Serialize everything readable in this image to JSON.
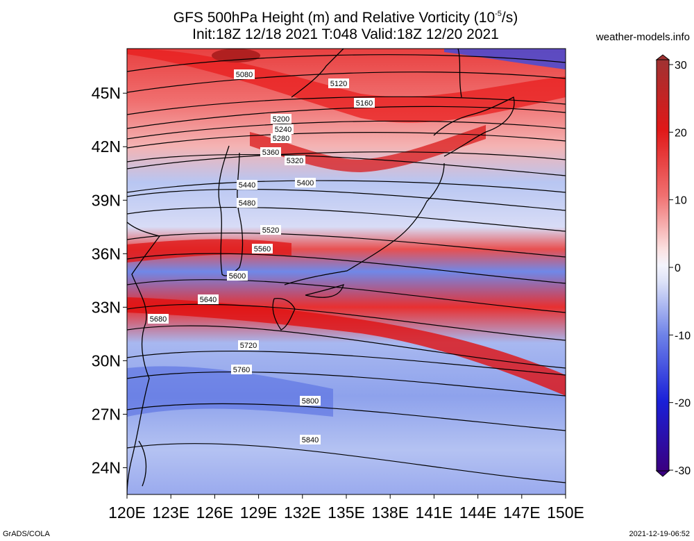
{
  "title": {
    "line1_prefix": "GFS 500hPa Height (m) and Relative Vorticity (10",
    "line1_exp": "-5",
    "line1_suffix": "/s)",
    "line2": "Init:18Z 12/18 2021 T:048 Valid:18Z 12/20 2021"
  },
  "credit": "weather-models.info",
  "footer_left": "GrADS/COLA",
  "footer_right": "2021-12-19-06:52",
  "map": {
    "lon_ticks": [
      "120E",
      "123E",
      "126E",
      "129E",
      "132E",
      "135E",
      "138E",
      "141E",
      "144E",
      "147E",
      "150E"
    ],
    "lat_ticks": [
      "45N",
      "42N",
      "39N",
      "36N",
      "33N",
      "30N",
      "27N",
      "24N"
    ],
    "contour_labels": [
      "5080",
      "5120",
      "5160",
      "5200",
      "5240",
      "5280",
      "5320",
      "5360",
      "5400",
      "5440",
      "5480",
      "5520",
      "5560",
      "5600",
      "5640",
      "5680",
      "5720",
      "5760",
      "5800",
      "5840"
    ]
  },
  "colorbar": {
    "ticks": [
      "30",
      "20",
      "10",
      "0",
      "-10",
      "-20",
      "-30"
    ],
    "colors": [
      "#3a0080",
      "#1a10c8",
      "#2d3cf0",
      "#6e82e8",
      "#b4c0f0",
      "#f0f0fa",
      "#f5b4b4",
      "#f06e6e",
      "#e81e1e",
      "#c81414",
      "#a03232"
    ]
  }
}
